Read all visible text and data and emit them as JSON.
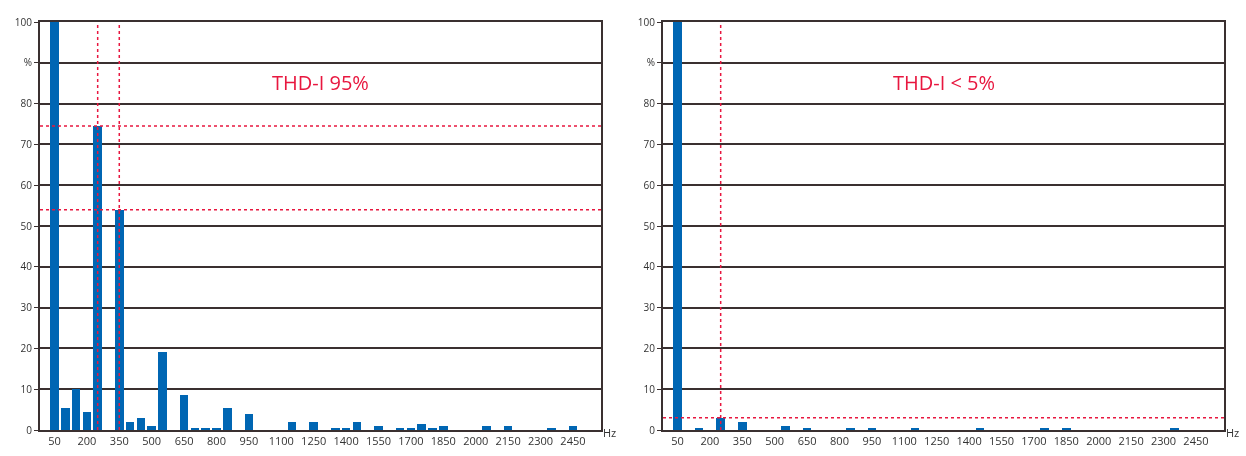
{
  "chart_data": [
    {
      "type": "bar",
      "annotations": [
        "THD-I 95%"
      ],
      "xlabel": "Hz",
      "x": [
        50,
        100,
        150,
        200,
        250,
        300,
        350,
        400,
        450,
        500,
        550,
        600,
        650,
        700,
        750,
        800,
        850,
        900,
        950,
        1000,
        1050,
        1100,
        1150,
        1200,
        1250,
        1300,
        1350,
        1400,
        1450,
        1500,
        1550,
        1600,
        1650,
        1700,
        1750,
        1800,
        1850,
        1900,
        1950,
        2000,
        2050,
        2100,
        2150,
        2200,
        2250,
        2300,
        2350,
        2400,
        2450
      ],
      "values": [
        100,
        5.5,
        10,
        4.5,
        74.5,
        0,
        54,
        2,
        3,
        1,
        19,
        0,
        8.5,
        0.5,
        0.5,
        0.5,
        5.5,
        0,
        4,
        0,
        0,
        0,
        2,
        0,
        2,
        0,
        0.5,
        0.5,
        2,
        0,
        1,
        0,
        0.5,
        0.5,
        1.5,
        0.5,
        1,
        0,
        0,
        0,
        1,
        0,
        1,
        0,
        0,
        0,
        0.5,
        0,
        1
      ],
      "color": "#0066b3",
      "xlim": [
        -17,
        2580
      ],
      "xticks": [
        50,
        200,
        350,
        500,
        650,
        800,
        950,
        1100,
        1250,
        1400,
        1550,
        1700,
        1850,
        2000,
        2150,
        2300,
        2450
      ],
      "ylim": [
        0,
        100
      ],
      "yticks": [
        0,
        10,
        20,
        30,
        40,
        50,
        60,
        70,
        80,
        {
          "value": 90,
          "label": "%"
        },
        100
      ],
      "grid": "y",
      "ref_lines": [
        {
          "axis": "x",
          "value": 250,
          "color": "#e8173f",
          "line_style": "dotted"
        },
        {
          "axis": "x",
          "value": 350,
          "color": "#e8173f",
          "line_style": "dotted"
        },
        {
          "axis": "y",
          "value": 74.5,
          "color": "#e8173f",
          "line_style": "dotted"
        },
        {
          "axis": "y",
          "value": 54,
          "color": "#e8173f",
          "line_style": "dotted"
        }
      ]
    },
    {
      "type": "bar",
      "annotations": [
        "THD-I < 5%"
      ],
      "xlabel": "Hz",
      "x": [
        50,
        100,
        150,
        200,
        250,
        300,
        350,
        400,
        450,
        500,
        550,
        600,
        650,
        700,
        750,
        800,
        850,
        900,
        950,
        1000,
        1050,
        1100,
        1150,
        1200,
        1250,
        1300,
        1350,
        1400,
        1450,
        1500,
        1550,
        1600,
        1650,
        1700,
        1750,
        1800,
        1850,
        1900,
        1950,
        2000,
        2050,
        2100,
        2150,
        2200,
        2250,
        2300,
        2350,
        2400,
        2450
      ],
      "values": [
        100,
        0,
        0.5,
        0,
        3,
        0,
        2,
        0,
        0,
        0,
        1,
        0,
        0.5,
        0,
        0,
        0,
        0.5,
        0,
        0.5,
        0,
        0,
        0,
        0.5,
        0,
        0,
        0,
        0,
        0,
        0.5,
        0,
        0,
        0,
        0,
        0,
        0.5,
        0,
        0.5,
        0,
        0,
        0,
        0,
        0,
        0,
        0,
        0,
        0,
        0.5,
        0,
        0
      ],
      "color": "#0066b3",
      "xlim": [
        -17,
        2580
      ],
      "xticks": [
        50,
        200,
        350,
        500,
        650,
        800,
        950,
        1100,
        1250,
        1400,
        1550,
        1700,
        1850,
        2000,
        2150,
        2300,
        2450
      ],
      "ylim": [
        0,
        100
      ],
      "yticks": [
        0,
        10,
        20,
        30,
        40,
        50,
        60,
        70,
        80,
        {
          "value": 90,
          "label": "%"
        },
        100
      ],
      "grid": "y",
      "ref_lines": [
        {
          "axis": "x",
          "value": 250,
          "color": "#e8173f",
          "line_style": "dotted"
        },
        {
          "axis": "y",
          "value": 3,
          "color": "#e8173f",
          "line_style": "dotted"
        }
      ]
    }
  ]
}
